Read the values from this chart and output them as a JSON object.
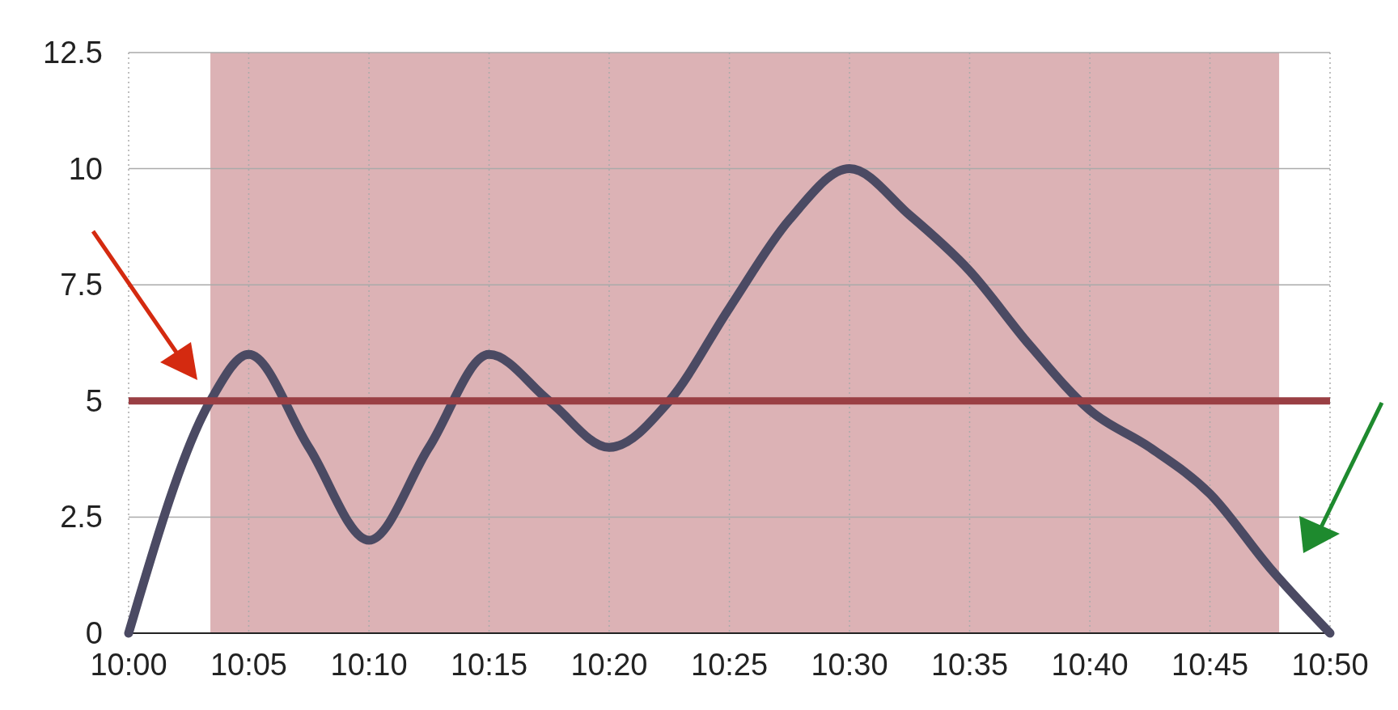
{
  "chart_data": {
    "type": "line",
    "x": [
      10,
      10.0567,
      10.0833,
      10.125,
      10.1667,
      10.2083,
      10.25,
      10.2917,
      10.3333,
      10.375,
      10.4167,
      10.4583,
      10.5,
      10.5417,
      10.5833,
      10.625,
      10.6667,
      10.7083,
      10.75,
      10.7917,
      10.8333
    ],
    "series": [
      {
        "color": "#4b4a63",
        "values": [
          0,
          5,
          6,
          4,
          2,
          4,
          6,
          5,
          4,
          5,
          7,
          8.9,
          10,
          9,
          7.8,
          6.2,
          4.8,
          4,
          3,
          1.4,
          0
        ]
      }
    ],
    "xlim": [
      10,
      10.8333
    ],
    "xticks": [
      {
        "value": 10,
        "label": "10:00"
      },
      {
        "value": 10.0833,
        "label": "10:05"
      },
      {
        "value": 10.1667,
        "label": "10:10"
      },
      {
        "value": 10.25,
        "label": "10:15"
      },
      {
        "value": 10.3333,
        "label": "10:20"
      },
      {
        "value": 10.4167,
        "label": "10:25"
      },
      {
        "value": 10.5,
        "label": "10:30"
      },
      {
        "value": 10.5833,
        "label": "10:35"
      },
      {
        "value": 10.6667,
        "label": "10:40"
      },
      {
        "value": 10.75,
        "label": "10:45"
      },
      {
        "value": 10.8333,
        "label": "10:50"
      }
    ],
    "ylim": [
      0,
      12.5
    ],
    "yticks": [
      0,
      2.5,
      5,
      7.5,
      10,
      12.5
    ],
    "grid": true,
    "ref_lines": [
      {
        "axis": "y",
        "value": 5,
        "color": "#9a3f44"
      }
    ],
    "bands": [
      {
        "axis": "x",
        "from": 10.0567,
        "to": 10.798,
        "color": "#dcb2b5"
      }
    ]
  }
}
